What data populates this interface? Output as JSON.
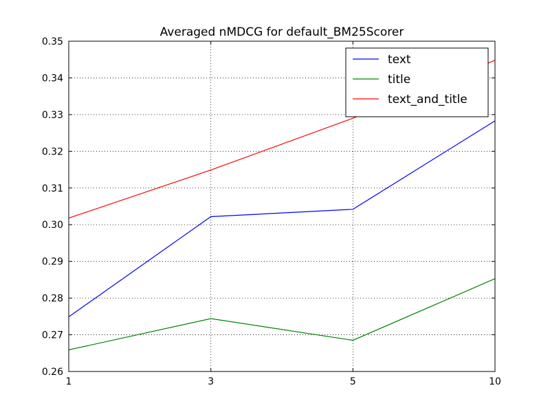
{
  "chart_data": {
    "type": "line",
    "title": "Averaged nMDCG for default_BM25Scorer",
    "xlabel": "",
    "ylabel": "",
    "categories": [
      "1",
      "3",
      "5",
      "10"
    ],
    "ylim": [
      0.26,
      0.35
    ],
    "yticks": [
      "0.26",
      "0.27",
      "0.28",
      "0.29",
      "0.30",
      "0.31",
      "0.32",
      "0.33",
      "0.34",
      "0.35"
    ],
    "grid": true,
    "legend_position": "top-right",
    "series": [
      {
        "name": "text",
        "color": "#0000ff",
        "values": [
          0.2749,
          0.3022,
          0.3042,
          0.3283
        ]
      },
      {
        "name": "title",
        "color": "#008000",
        "values": [
          0.2659,
          0.2744,
          0.2685,
          0.2853
        ]
      },
      {
        "name": "text_and_title",
        "color": "#ff0000",
        "values": [
          0.3018,
          0.3149,
          0.329,
          0.3448
        ]
      }
    ]
  }
}
